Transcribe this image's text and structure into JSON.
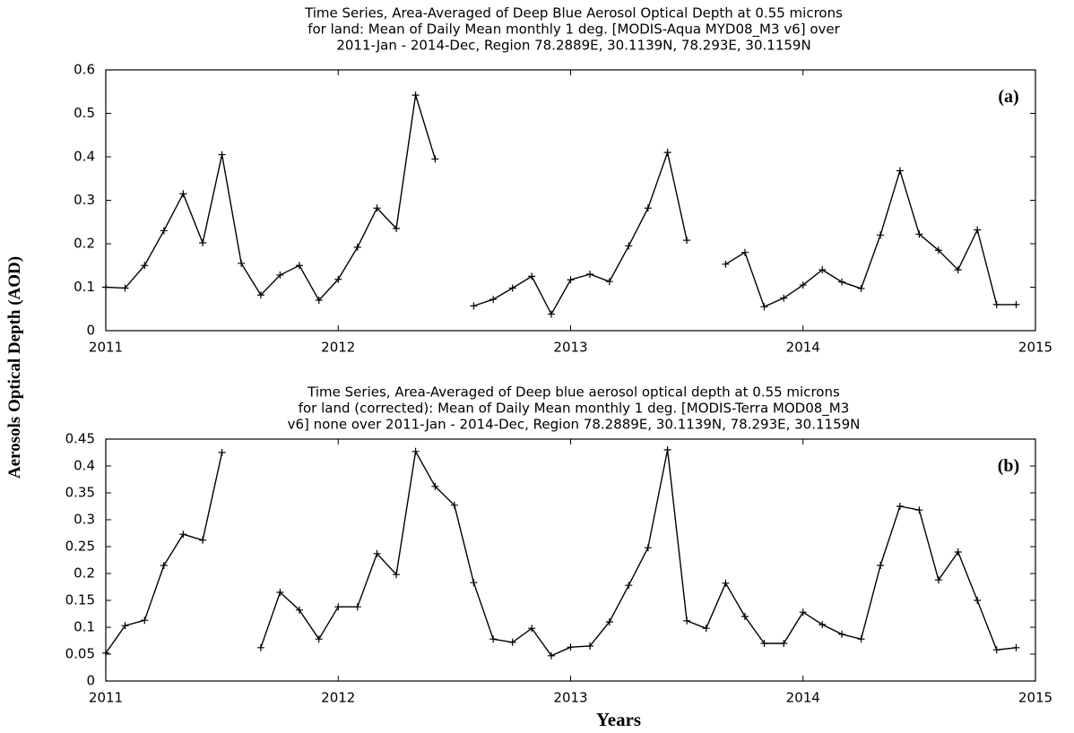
{
  "chart_data": [
    {
      "type": "line",
      "title": [
        "Time Series, Area-Averaged of Deep Blue Aerosol Optical Depth at 0.55 microns",
        "for land: Mean of Daily Mean monthly 1 deg. [MODIS-Aqua MYD08_M3 v6] over",
        "2011-Jan - 2014-Dec, Region 78.2889E, 30.1139N, 78.293E, 30.1159N"
      ],
      "annotation": "(a)",
      "ylabel": "Aerosols Optical Depth (AOD)",
      "color": "#000000",
      "x": [
        2011,
        2011.083,
        2011.167,
        2011.25,
        2011.333,
        2011.417,
        2011.5,
        2011.583,
        2011.667,
        2011.75,
        2011.833,
        2011.917,
        2012,
        2012.083,
        2012.167,
        2012.25,
        2012.333,
        2012.417,
        2012.5,
        2012.583,
        2012.667,
        2012.75,
        2012.833,
        2012.917,
        2013,
        2013.083,
        2013.167,
        2013.25,
        2013.333,
        2013.417,
        2013.5,
        2013.583,
        2013.667,
        2013.75,
        2013.833,
        2013.917,
        2014,
        2014.083,
        2014.167,
        2014.25,
        2014.333,
        2014.417,
        2014.5,
        2014.583,
        2014.667,
        2014.75,
        2014.833,
        2014.917
      ],
      "values": [
        0.1,
        0.098,
        0.15,
        0.23,
        0.315,
        0.202,
        0.405,
        0.155,
        0.082,
        0.128,
        0.15,
        0.07,
        0.118,
        0.192,
        0.282,
        0.235,
        0.542,
        0.395,
        null,
        0.057,
        0.072,
        0.098,
        0.125,
        0.038,
        0.117,
        0.13,
        0.113,
        0.195,
        0.282,
        0.41,
        0.208,
        null,
        0.153,
        0.18,
        0.055,
        0.075,
        0.105,
        0.14,
        0.112,
        0.097,
        0.22,
        0.368,
        0.222,
        0.185,
        0.14,
        0.232,
        0.06,
        0.06
      ],
      "xlim": [
        2011,
        2015
      ],
      "xticks": [
        2011,
        2012,
        2013,
        2014,
        2015
      ],
      "ylim": [
        0,
        0.6
      ],
      "yticks": [
        0,
        0.1,
        0.2,
        0.3,
        0.4,
        0.5,
        0.6
      ]
    },
    {
      "type": "line",
      "title": [
        "Time Series, Area-Averaged of Deep blue aerosol optical depth at 0.55 microns",
        "for land (corrected): Mean of Daily Mean monthly 1 deg. [MODIS-Terra MOD08_M3",
        "v6] none over 2011-Jan - 2014-Dec, Region 78.2889E, 30.1139N, 78.293E, 30.1159N"
      ],
      "annotation": "(b)",
      "xlabel": "Years",
      "color": "#000000",
      "x": [
        2011,
        2011.083,
        2011.167,
        2011.25,
        2011.333,
        2011.417,
        2011.5,
        2011.583,
        2011.667,
        2011.75,
        2011.833,
        2011.917,
        2012,
        2012.083,
        2012.167,
        2012.25,
        2012.333,
        2012.417,
        2012.5,
        2012.583,
        2012.667,
        2012.75,
        2012.833,
        2012.917,
        2013,
        2013.083,
        2013.167,
        2013.25,
        2013.333,
        2013.417,
        2013.5,
        2013.583,
        2013.667,
        2013.75,
        2013.833,
        2013.917,
        2014,
        2014.083,
        2014.167,
        2014.25,
        2014.333,
        2014.417,
        2014.5,
        2014.583,
        2014.667,
        2014.75,
        2014.833,
        2014.917
      ],
      "values": [
        0.052,
        0.103,
        0.113,
        0.215,
        0.273,
        0.262,
        0.425,
        null,
        0.062,
        0.165,
        0.132,
        0.078,
        0.138,
        0.138,
        0.237,
        0.198,
        0.427,
        0.362,
        0.327,
        0.183,
        0.078,
        0.072,
        0.098,
        0.047,
        0.063,
        0.065,
        0.11,
        0.178,
        0.248,
        0.43,
        0.112,
        0.098,
        0.182,
        0.12,
        0.07,
        0.07,
        0.128,
        0.105,
        0.087,
        0.078,
        0.215,
        0.325,
        0.318,
        0.188,
        0.24,
        0.15,
        0.058,
        0.062
      ],
      "xlim": [
        2011,
        2015
      ],
      "xticks": [
        2011,
        2012,
        2013,
        2014,
        2015
      ],
      "ylim": [
        0,
        0.45
      ],
      "yticks": [
        0,
        0.05,
        0.1,
        0.15,
        0.2,
        0.25,
        0.3,
        0.35,
        0.4,
        0.45
      ]
    }
  ]
}
